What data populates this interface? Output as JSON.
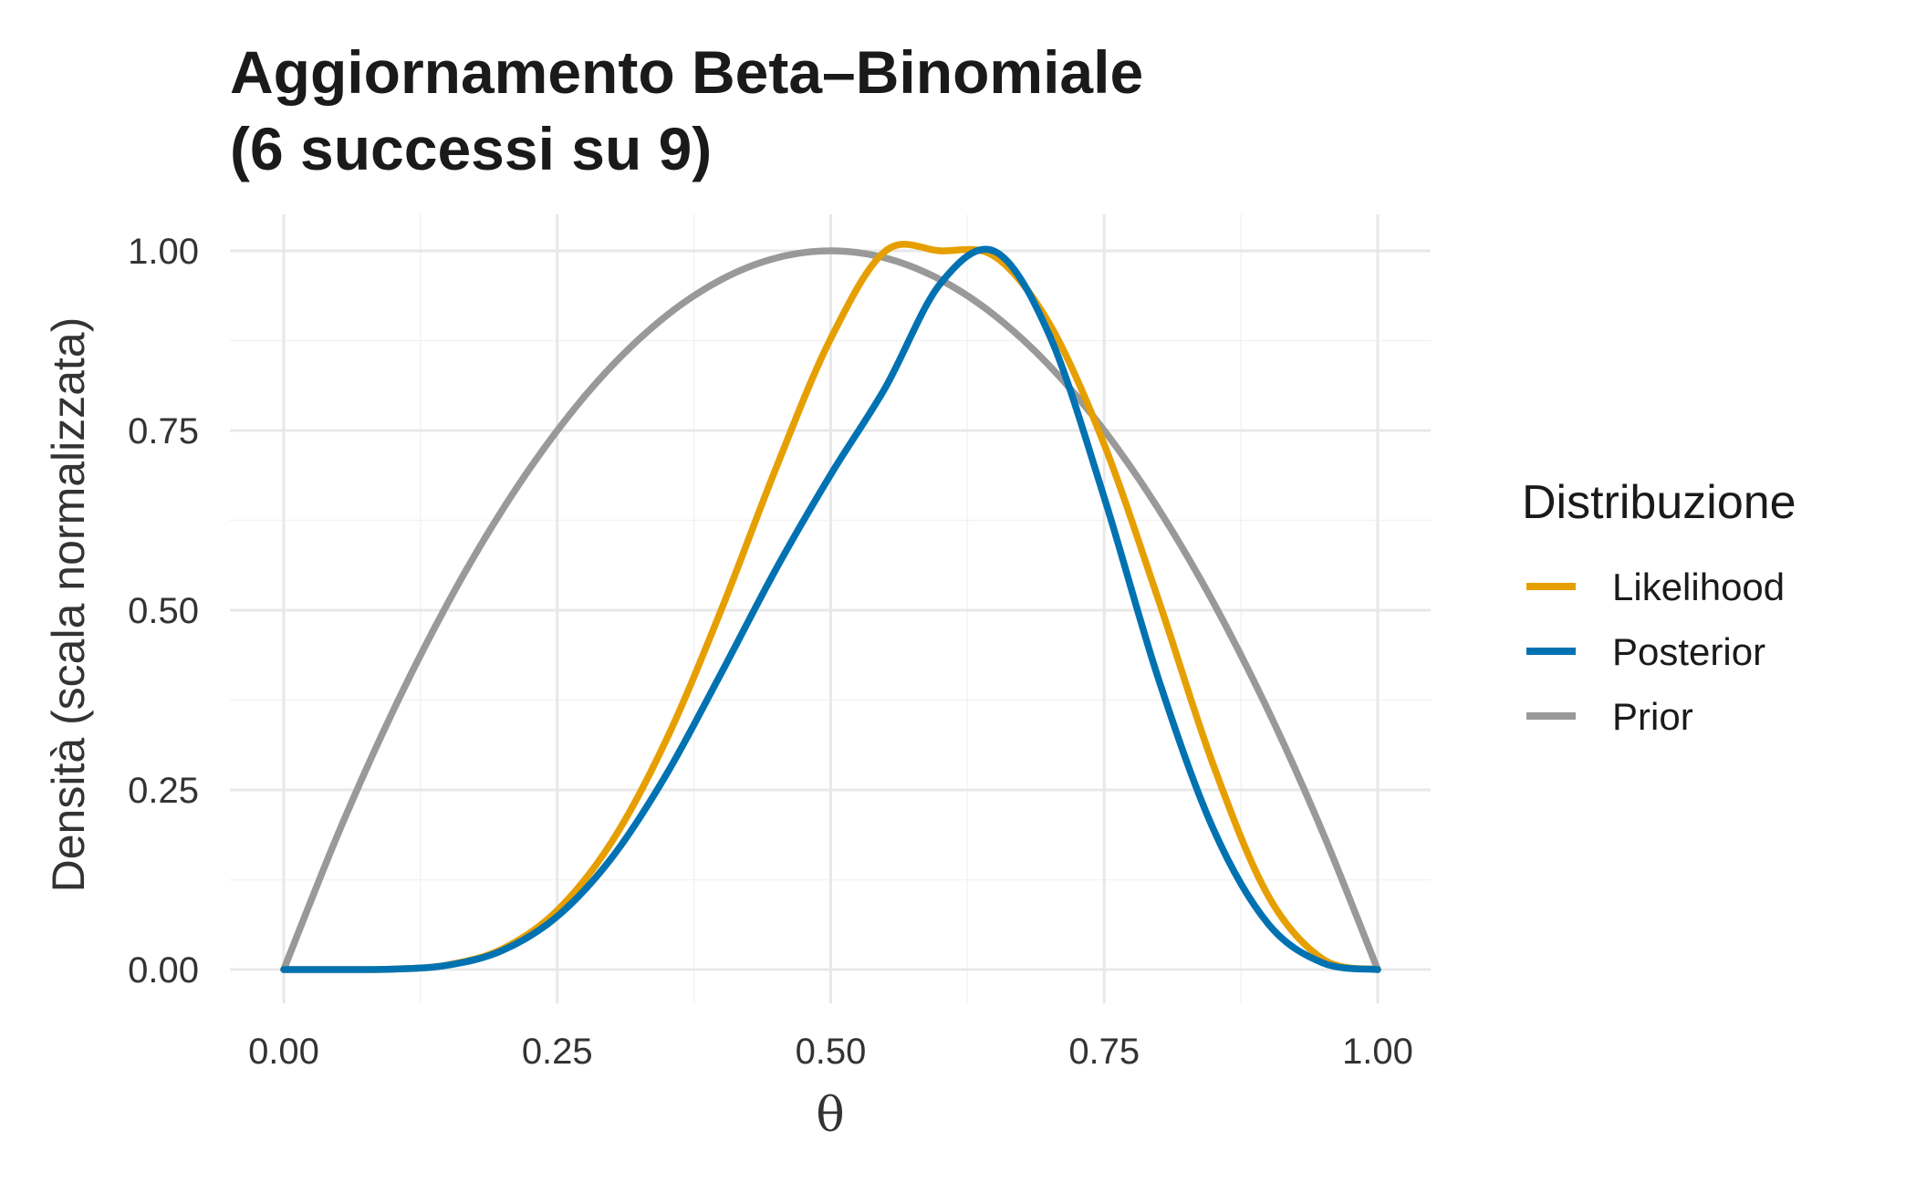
{
  "chart_data": {
    "type": "line",
    "title_line1": "Aggiornamento Beta–Binomiale",
    "title_line2": "(6 successi su 9)",
    "xlabel": "θ",
    "ylabel": "Densità (scala normalizzata)",
    "xlim": [
      0,
      1
    ],
    "ylim": [
      0,
      1
    ],
    "x_ticks": [
      0,
      0.25,
      0.5,
      0.75,
      1
    ],
    "x_tick_labels": [
      "0.00",
      "0.25",
      "0.50",
      "0.75",
      "1.00"
    ],
    "y_ticks": [
      0,
      0.25,
      0.5,
      0.75,
      1
    ],
    "y_tick_labels": [
      "0.00",
      "0.25",
      "0.50",
      "0.75",
      "1.00"
    ],
    "grid": true,
    "legend_title": "Distribuzione",
    "legend_position": "right",
    "x": [
      0,
      0.05,
      0.1,
      0.15,
      0.2,
      0.25,
      0.3,
      0.35,
      0.4,
      0.45,
      0.5,
      0.55,
      0.6,
      0.65,
      0.7,
      0.75,
      0.8,
      0.85,
      0.9,
      0.95,
      1.0
    ],
    "series": [
      {
        "name": "Likelihood",
        "color": "#E69F00",
        "values": [
          0,
          0,
          0.0006,
          0.0065,
          0.0288,
          0.0822,
          0.1782,
          0.3205,
          0.5008,
          0.6978,
          0.8779,
          0.9997,
          1.0,
          0.9921,
          0.8982,
          0.7305,
          0.5126,
          0.2834,
          0.1024,
          0.0145,
          0
        ]
      },
      {
        "name": "Posterior",
        "color": "#0072B2",
        "values": [
          0,
          0,
          0.0006,
          0.0061,
          0.0266,
          0.074,
          0.1559,
          0.272,
          0.4127,
          0.5573,
          0.6887,
          0.81,
          0.9539,
          0.9992,
          0.8823,
          0.6566,
          0.4026,
          0.1946,
          0.0635,
          0.0092,
          0
        ]
      },
      {
        "name": "Prior",
        "color": "#999999",
        "values": [
          0,
          0.19,
          0.36,
          0.51,
          0.64,
          0.75,
          0.84,
          0.91,
          0.96,
          0.99,
          1.0,
          0.99,
          0.96,
          0.91,
          0.84,
          0.75,
          0.64,
          0.51,
          0.36,
          0.19,
          0
        ]
      }
    ]
  }
}
